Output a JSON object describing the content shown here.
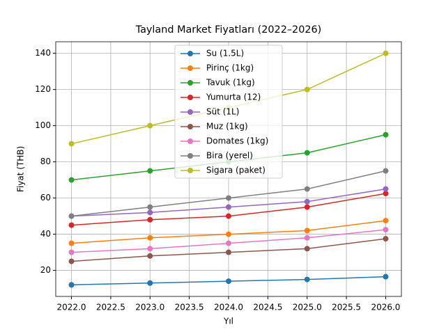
{
  "chart_data": {
    "type": "line",
    "title": "Tayland Market Fiyatları (2022–2026)",
    "x_label": "Yıl",
    "y_label": "Fiyat (THB)",
    "x": [
      2022,
      2023,
      2024,
      2025,
      2026
    ],
    "series": [
      {
        "name": "Su (1.5L)",
        "color": "#1f77b4",
        "values": [
          12,
          13,
          14,
          15,
          16.5
        ]
      },
      {
        "name": "Pirinç (1kg)",
        "color": "#ff7f0e",
        "values": [
          35,
          38,
          40,
          42,
          47.5
        ]
      },
      {
        "name": "Tavuk (1kg)",
        "color": "#2ca02c",
        "values": [
          70,
          75,
          80,
          85,
          95
        ]
      },
      {
        "name": "Yumurta (12)",
        "color": "#d62728",
        "values": [
          45,
          48,
          50,
          55,
          62.5
        ]
      },
      {
        "name": "Süt (1L)",
        "color": "#9467bd",
        "values": [
          50,
          52,
          55,
          58,
          65
        ]
      },
      {
        "name": "Muz (1kg)",
        "color": "#8c564b",
        "values": [
          25,
          28,
          30,
          32,
          37.5
        ]
      },
      {
        "name": "Domates (1kg)",
        "color": "#e377c2",
        "values": [
          30,
          32,
          35,
          38,
          42.5
        ]
      },
      {
        "name": "Bira (yerel)",
        "color": "#7f7f7f",
        "values": [
          50,
          55,
          60,
          65,
          75
        ]
      },
      {
        "name": "Sigara (paket)",
        "color": "#bcbd22",
        "values": [
          90,
          100,
          110,
          120,
          140
        ]
      }
    ],
    "xlim": [
      2021.8,
      2026.2
    ],
    "xticks": [
      {
        "value": 2022,
        "label": "2022.0"
      },
      {
        "value": 2022.5,
        "label": "2022.5"
      },
      {
        "value": 2023,
        "label": "2023.0"
      },
      {
        "value": 2023.5,
        "label": "2023.5"
      },
      {
        "value": 2024,
        "label": "2024.0"
      },
      {
        "value": 2024.5,
        "label": "2024.5"
      },
      {
        "value": 2025,
        "label": "2025.0"
      },
      {
        "value": 2025.5,
        "label": "2025.5"
      },
      {
        "value": 2026,
        "label": "2026.0"
      }
    ],
    "ylim": [
      5.6,
      146.4
    ],
    "yticks": [
      20,
      40,
      60,
      80,
      100,
      120,
      140
    ],
    "grid": true,
    "legend": "upper center"
  }
}
